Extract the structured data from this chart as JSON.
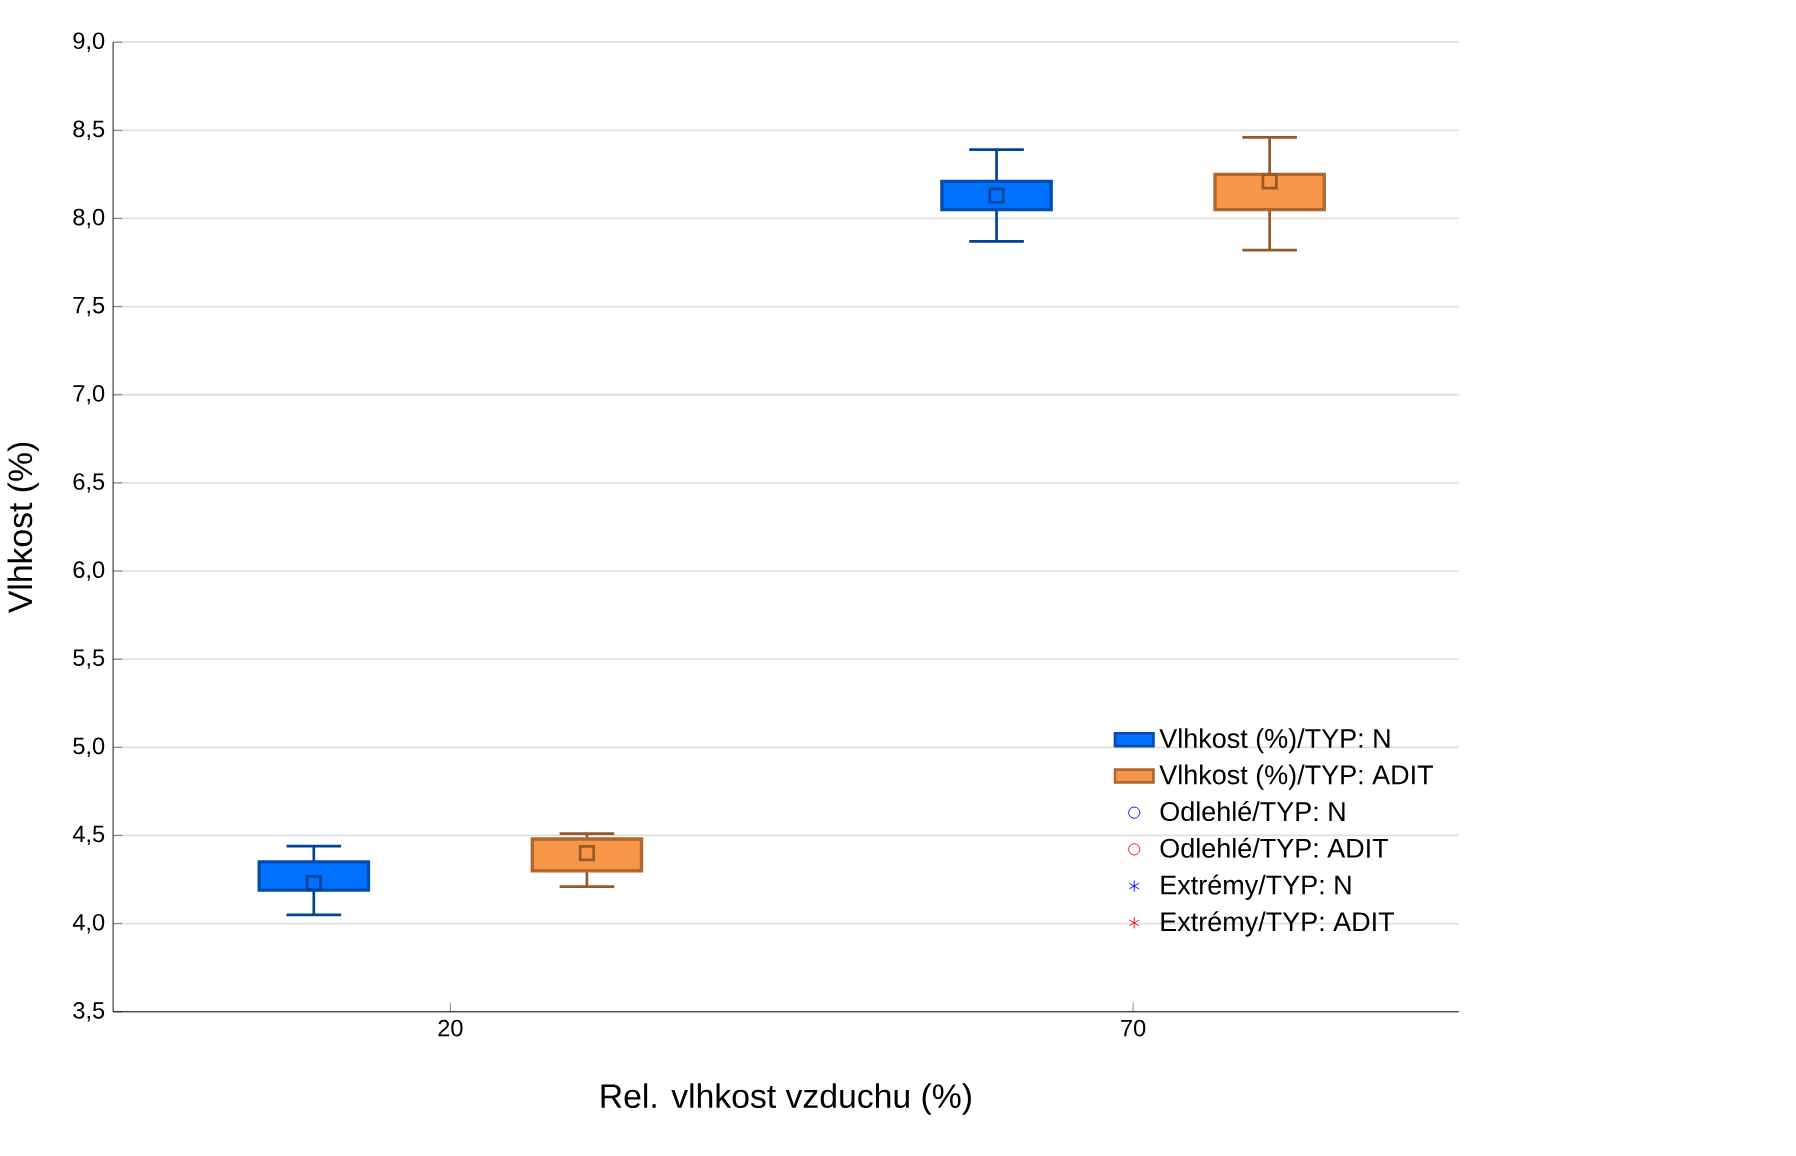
{
  "chart_data": {
    "type": "box",
    "xlabel": "Rel. vlhkost vzduchu (%)",
    "ylabel": "Vlhkost (%)",
    "categories": [
      "20",
      "70"
    ],
    "ylim": [
      3.5,
      9.0
    ],
    "yticks": [
      {
        "value": 3.5,
        "label": "3,5"
      },
      {
        "value": 4.0,
        "label": "4,0"
      },
      {
        "value": 4.5,
        "label": "4,5"
      },
      {
        "value": 5.0,
        "label": "5,0"
      },
      {
        "value": 5.5,
        "label": "5,5"
      },
      {
        "value": 6.0,
        "label": "6,0"
      },
      {
        "value": 6.5,
        "label": "6,5"
      },
      {
        "value": 7.0,
        "label": "7,0"
      },
      {
        "value": 7.5,
        "label": "7,5"
      },
      {
        "value": 8.0,
        "label": "8,0"
      },
      {
        "value": 8.5,
        "label": "8,5"
      },
      {
        "value": 9.0,
        "label": "9,0"
      }
    ],
    "grid": "y",
    "legend": "bottom right",
    "series": [
      {
        "name": "Vlhkost (%)/TYP: N",
        "color": "#0070ff",
        "boxes": [
          {
            "low": 4.05,
            "q1": 4.19,
            "median": 4.23,
            "q3": 4.35,
            "high": 4.44
          },
          {
            "low": 7.87,
            "q1": 8.05,
            "median": 8.13,
            "q3": 8.21,
            "high": 8.39
          }
        ]
      },
      {
        "name": "Vlhkost (%)/TYP: ADIT",
        "color": "#f79646",
        "boxes": [
          {
            "low": 4.21,
            "q1": 4.3,
            "median": 4.4,
            "q3": 4.48,
            "high": 4.51
          },
          {
            "low": 7.82,
            "q1": 8.05,
            "median": 8.21,
            "q3": 8.25,
            "high": 8.46
          }
        ]
      },
      {
        "name": "Odlehlé/TYP: N",
        "type": "scatter",
        "marker": "circle",
        "color": "#0000ff",
        "values": [
          null,
          null
        ]
      },
      {
        "name": "Odlehlé/TYP: ADIT",
        "type": "scatter",
        "marker": "circle",
        "color": "#ff0000",
        "values": [
          null,
          null
        ]
      },
      {
        "name": "Extrémy/TYP: N",
        "type": "scatter",
        "marker": "star",
        "color": "#0000ff",
        "values": [
          null,
          null
        ]
      },
      {
        "name": "Extrémy/TYP: ADIT",
        "type": "scatter",
        "marker": "star",
        "color": "#ff0000",
        "values": [
          null,
          null
        ]
      }
    ]
  }
}
